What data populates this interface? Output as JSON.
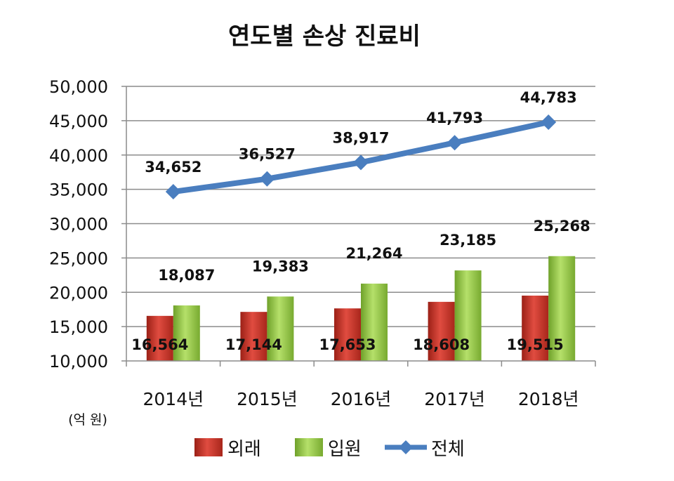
{
  "chart_data": {
    "type": "bar",
    "title": "연도별 손상 진료비",
    "unit_label": "(억 원)",
    "categories": [
      "2014년",
      "2015년",
      "2016년",
      "2017년",
      "2018년"
    ],
    "ylim": [
      10000,
      50000
    ],
    "yticks": [
      "10,000",
      "15,000",
      "20,000",
      "25,000",
      "30,000",
      "35,000",
      "40,000",
      "45,000",
      "50,000"
    ],
    "ytick_values": [
      10000,
      15000,
      20000,
      25000,
      30000,
      35000,
      40000,
      45000,
      50000
    ],
    "grid": true,
    "legend_position": "bottom",
    "series": [
      {
        "name": "외래",
        "type": "bar",
        "color": "#c0392b",
        "values": [
          16564,
          17144,
          17653,
          18608,
          19515
        ],
        "labels": [
          "16,564",
          "17,144",
          "17,653",
          "18,608",
          "19,515"
        ]
      },
      {
        "name": "입원",
        "type": "bar",
        "color": "#8dc63f",
        "values": [
          18087,
          19383,
          21264,
          23185,
          25268
        ],
        "labels": [
          "18,087",
          "19,383",
          "21,264",
          "23,185",
          "25,268"
        ]
      },
      {
        "name": "전체",
        "type": "line",
        "color": "#4a7ebf",
        "values": [
          34652,
          36527,
          38917,
          41793,
          44783
        ],
        "labels": [
          "34,652",
          "36,527",
          "38,917",
          "41,793",
          "44,783"
        ]
      }
    ]
  }
}
